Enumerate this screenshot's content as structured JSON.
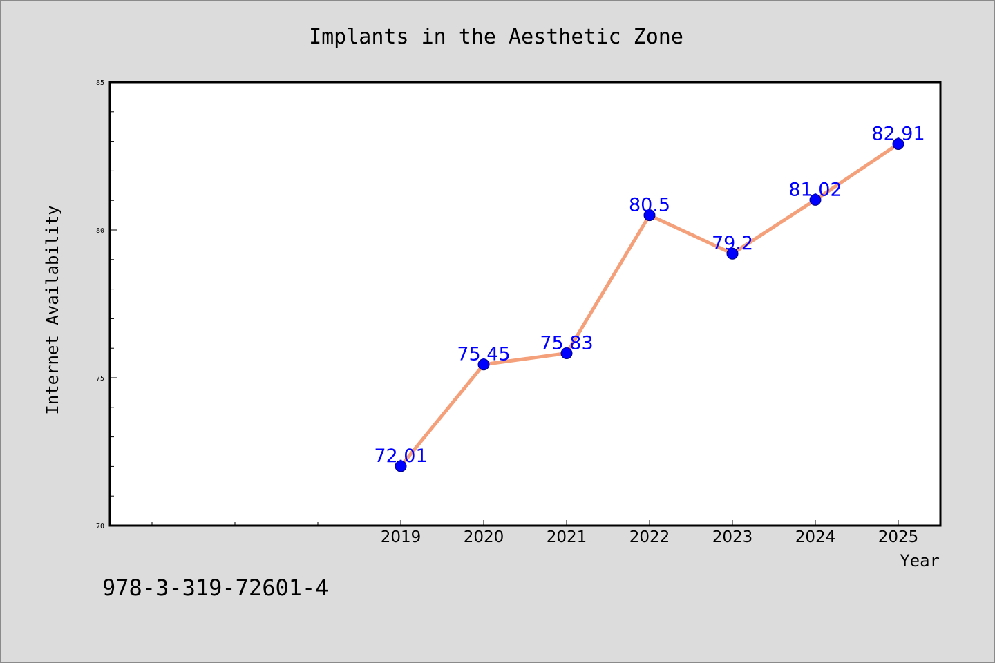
{
  "chart_data": {
    "type": "line",
    "title": "Implants in the Aesthetic Zone",
    "xlabel": "Year",
    "ylabel": "Internet Availability",
    "categories": [
      "2019",
      "2020",
      "2021",
      "2022",
      "2023",
      "2024",
      "2025"
    ],
    "values": [
      72.01,
      75.45,
      75.83,
      80.5,
      79.2,
      81.02,
      82.91
    ],
    "data_labels": [
      "72.01",
      "75.45",
      "75.83",
      "80.5",
      "79.2",
      "81.02",
      "82.91"
    ],
    "ylim": [
      70,
      85
    ],
    "yticks": [
      "70",
      "75",
      "80",
      "85"
    ],
    "grid": false,
    "legend": "none",
    "colors": {
      "line": "#f4a07a",
      "marker_fill": "#0000ff",
      "marker_edge": "#000080",
      "data_label": "#0000ff",
      "background": "#dcdcdc",
      "plot_background": "#ffffff"
    }
  },
  "footer": {
    "isbn": "978-3-319-72601-4"
  }
}
